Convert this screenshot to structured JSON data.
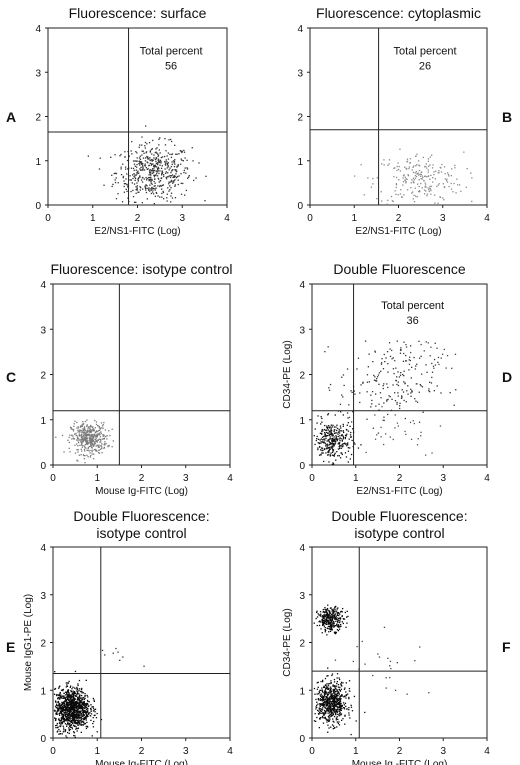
{
  "chart_data": [
    {
      "type": "scatter",
      "panel_letter": "A",
      "title": "Fluorescence: surface",
      "title2": "",
      "xlabel": "E2/NS1-FITC (Log)",
      "ylabel": "",
      "xlim": [
        0,
        4
      ],
      "ylim": [
        0,
        4
      ],
      "xticks": [
        "0",
        "1",
        "2",
        "3",
        "4"
      ],
      "yticks": [
        "0",
        "1",
        "2",
        "3",
        "4"
      ],
      "gate": {
        "x": 1.8,
        "y": 1.65
      },
      "annotation": {
        "label": "Total percent",
        "value": "56",
        "x": 2.75,
        "y": 3.4
      },
      "clusters": [
        {
          "cx": 2.35,
          "cy": 0.75,
          "sx": 0.42,
          "sy": 0.32,
          "n": 520,
          "color": "#333333"
        }
      ]
    },
    {
      "type": "scatter",
      "panel_letter": "B",
      "title": "Fluorescence: cytoplasmic",
      "title2": "",
      "xlabel": "E2/NS1-FITC (Log)",
      "ylabel": "",
      "xlim": [
        0,
        4
      ],
      "ylim": [
        0,
        4
      ],
      "xticks": [
        "0",
        "1",
        "2",
        "3",
        "4"
      ],
      "yticks": [
        "0",
        "1",
        "2",
        "3",
        "4"
      ],
      "gate": {
        "x": 1.55,
        "y": 1.7
      },
      "annotation": {
        "label": "Total percent",
        "value": "26",
        "x": 2.6,
        "y": 3.4
      },
      "clusters": [
        {
          "cx": 2.45,
          "cy": 0.6,
          "sx": 0.5,
          "sy": 0.3,
          "n": 230,
          "color": "#8a8a8a"
        }
      ]
    },
    {
      "type": "scatter",
      "panel_letter": "C",
      "title": "Fluorescence: isotype control",
      "title2": "",
      "xlabel": "Mouse Ig-FITC (Log)",
      "ylabel": "",
      "xlim": [
        0,
        4
      ],
      "ylim": [
        0,
        4
      ],
      "xticks": [
        "0",
        "1",
        "2",
        "3",
        "4"
      ],
      "yticks": [
        "0",
        "1",
        "2",
        "3",
        "4"
      ],
      "gate": {
        "x": 1.5,
        "y": 1.2
      },
      "annotation": null,
      "clusters": [
        {
          "cx": 0.8,
          "cy": 0.6,
          "sx": 0.2,
          "sy": 0.17,
          "n": 420,
          "color": "#7a7a7a"
        }
      ]
    },
    {
      "type": "scatter",
      "panel_letter": "D",
      "title": "Double Fluorescence",
      "title2": "",
      "xlabel": "E2/NS1-FITC (Log)",
      "ylabel": "CD34-PE (Log)",
      "xlim": [
        0,
        4
      ],
      "ylim": [
        0,
        4
      ],
      "xticks": [
        "0",
        "1",
        "2",
        "3",
        "4"
      ],
      "yticks": [
        "0",
        "1",
        "2",
        "3",
        "4"
      ],
      "gate": {
        "x": 0.95,
        "y": 1.2
      },
      "annotation": {
        "label": "Total percent",
        "value": "36",
        "x": 2.3,
        "y": 3.45
      },
      "clusters": [
        {
          "cx": 0.45,
          "cy": 0.55,
          "sx": 0.22,
          "sy": 0.22,
          "n": 320,
          "color": "#111111"
        },
        {
          "cx": 1.7,
          "cy": 1.8,
          "sx": 0.55,
          "sy": 0.45,
          "n": 190,
          "color": "#333333"
        },
        {
          "cx": 2.6,
          "cy": 2.4,
          "sx": 0.45,
          "sy": 0.25,
          "n": 35,
          "color": "#444444"
        },
        {
          "cx": 1.9,
          "cy": 0.8,
          "sx": 0.6,
          "sy": 0.3,
          "n": 30,
          "color": "#555555"
        }
      ]
    },
    {
      "type": "scatter",
      "panel_letter": "E",
      "title": "Double Fluorescence:",
      "title2": "isotype control",
      "xlabel": "Mouse Ig-FITC (Log)",
      "ylabel": "Mouse IgG1-PE (Log)",
      "xlim": [
        0,
        4
      ],
      "ylim": [
        0,
        4
      ],
      "xticks": [
        "0",
        "1",
        "2",
        "3",
        "4"
      ],
      "yticks": [
        "0",
        "1",
        "2",
        "3",
        "4"
      ],
      "gate": {
        "x": 1.08,
        "y": 1.35
      },
      "annotation": null,
      "clusters": [
        {
          "cx": 0.42,
          "cy": 0.62,
          "sx": 0.2,
          "sy": 0.22,
          "n": 1100,
          "color": "#0a0a0a"
        },
        {
          "cx": 1.6,
          "cy": 1.7,
          "sx": 0.3,
          "sy": 0.15,
          "n": 8,
          "color": "#333333"
        }
      ]
    },
    {
      "type": "scatter",
      "panel_letter": "F",
      "title": "Double Fluorescence:",
      "title2": "isotype control",
      "xlabel": "Mouse Ig -FITC (Log)",
      "ylabel": "CD34-PE (Log)",
      "xlim": [
        0,
        4
      ],
      "ylim": [
        0,
        4
      ],
      "xticks": [
        "0",
        "1",
        "2",
        "3",
        "4"
      ],
      "yticks": [
        "0",
        "1",
        "2",
        "3",
        "4"
      ],
      "gate": {
        "x": 1.08,
        "y": 1.4
      },
      "annotation": null,
      "clusters": [
        {
          "cx": 0.42,
          "cy": 0.75,
          "sx": 0.18,
          "sy": 0.22,
          "n": 650,
          "color": "#0a0a0a"
        },
        {
          "cx": 0.42,
          "cy": 2.5,
          "sx": 0.15,
          "sy": 0.12,
          "n": 300,
          "color": "#0a0a0a"
        },
        {
          "cx": 1.6,
          "cy": 1.6,
          "sx": 0.5,
          "sy": 0.4,
          "n": 25,
          "color": "#444444"
        }
      ]
    }
  ]
}
